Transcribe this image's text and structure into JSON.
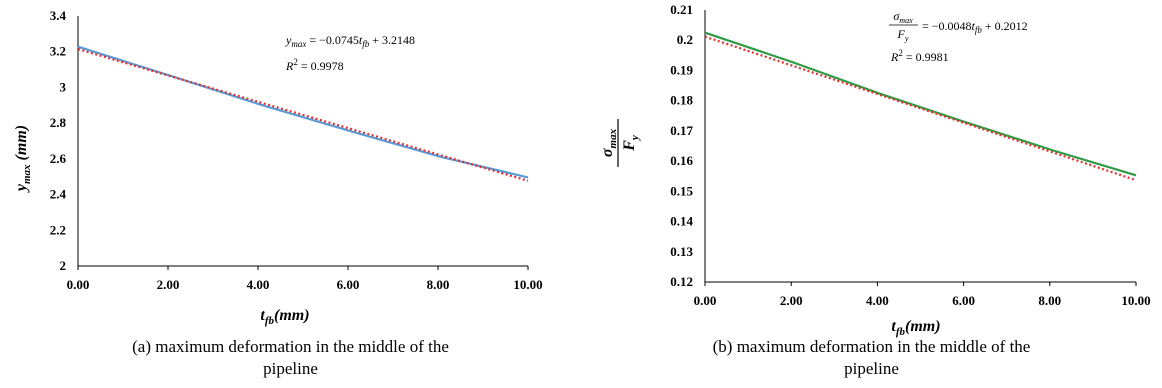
{
  "chart_data": [
    {
      "id": "a",
      "type": "line",
      "x": [
        0,
        2,
        4,
        6,
        8,
        9.9
      ],
      "series": [
        {
          "name": "",
          "values": [
            3.228,
            3.068,
            2.905,
            2.755,
            2.61,
            2.496
          ],
          "color": "#5b9bd5",
          "style": "solid"
        },
        {
          "name": "",
          "values": [
            3.2148,
            3.0658,
            2.9168,
            2.7678,
            2.6188,
            2.4773
          ],
          "color": "#e03030",
          "style": "dotted"
        }
      ],
      "xlim": [
        0,
        9.9
      ],
      "ylim": [
        2,
        3.4
      ],
      "xticks": [
        "0.00",
        "2.00",
        "4.00",
        "6.00",
        "8.00",
        "10.00"
      ],
      "yticks": [
        "2",
        "2.2",
        "2.4",
        "2.6",
        "2.8",
        "3",
        "3.2",
        "3.4"
      ],
      "xlabel": "t_fb(mm)",
      "ylabel": "y_max (mm)",
      "annotation_eq": "y_max = −0.0745t_fb + 3.2148",
      "annotation_r2": "R² = 0.9978",
      "caption_line1": "(a)   maximum deformation in the middle of the",
      "caption_line2": "pipeline",
      "grid": false
    },
    {
      "id": "b",
      "type": "line",
      "x": [
        0,
        2,
        4,
        6,
        8,
        9.9
      ],
      "series": [
        {
          "name": "",
          "values": [
            0.2025,
            0.1928,
            0.1824,
            0.1728,
            0.1635,
            0.1553
          ],
          "color": "#2e9b45",
          "style": "solid"
        },
        {
          "name": "",
          "values": [
            0.2012,
            0.1916,
            0.182,
            0.1724,
            0.1628,
            0.1537
          ],
          "color": "#e03030",
          "style": "dotted"
        }
      ],
      "xlim": [
        0,
        9.9
      ],
      "ylim": [
        0.12,
        0.21
      ],
      "xticks": [
        "0.00",
        "2.00",
        "4.00",
        "6.00",
        "8.00",
        "10.00"
      ],
      "yticks": [
        "0.12",
        "0.13",
        "0.14",
        "0.15",
        "0.16",
        "0.17",
        "0.18",
        "0.19",
        "0.2",
        "0.21"
      ],
      "xlabel": "t_fb(mm)",
      "ylabel": "σ_max / F_y",
      "annotation_eq": "σ_max / F_y = −0.0048t_fb + 0.2012",
      "annotation_r2": "R² = 0.9981",
      "caption_line1": "(b)   maximum deformation in the middle of the",
      "caption_line2": "pipeline",
      "grid": false
    }
  ]
}
